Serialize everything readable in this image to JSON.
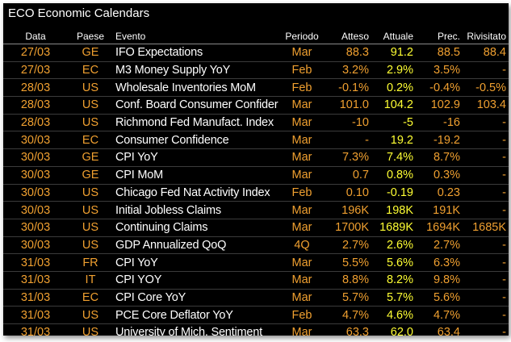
{
  "title": "ECO Economic Calendars",
  "colors": {
    "background": "#000000",
    "header_text": "#ffffff",
    "value_orange": "#f0a030",
    "actual_yellow": "#ffff33"
  },
  "headers": {
    "date": "Data",
    "country": "Paese",
    "event": "Evento",
    "period": "Periodo",
    "expected": "Atteso",
    "actual": "Attuale",
    "previous": "Prec.",
    "revised": "Rivisitato"
  },
  "rows": [
    {
      "date": "27/03",
      "country": "GE",
      "event": "IFO Expectations",
      "period": "Mar",
      "expected": "88.3",
      "actual": "91.2",
      "previous": "88.5",
      "revised": "88.4"
    },
    {
      "date": "27/03",
      "country": "EC",
      "event": "M3 Money Supply YoY",
      "period": "Feb",
      "expected": "3.2%",
      "actual": "2.9%",
      "previous": "3.5%",
      "revised": "-"
    },
    {
      "date": "28/03",
      "country": "US",
      "event": "Wholesale Inventories MoM",
      "period": "Feb",
      "expected": "-0.1%",
      "actual": "0.2%",
      "previous": "-0.4%",
      "revised": "-0.5%"
    },
    {
      "date": "28/03",
      "country": "US",
      "event": "Conf. Board Consumer Confider",
      "period": "Mar",
      "expected": "101.0",
      "actual": "104.2",
      "previous": "102.9",
      "revised": "103.4"
    },
    {
      "date": "28/03",
      "country": "US",
      "event": "Richmond Fed Manufact. Index",
      "period": "Mar",
      "expected": "-10",
      "actual": "-5",
      "previous": "-16",
      "revised": "-"
    },
    {
      "date": "30/03",
      "country": "EC",
      "event": "Consumer Confidence",
      "period": "Mar",
      "expected": "-",
      "actual": "19.2",
      "previous": "-19.2",
      "revised": "-"
    },
    {
      "date": "30/03",
      "country": "GE",
      "event": "CPI YoY",
      "period": "Mar",
      "expected": "7.3%",
      "actual": "7.4%",
      "previous": "8.7%",
      "revised": "-"
    },
    {
      "date": "30/03",
      "country": "GE",
      "event": "CPI MoM",
      "period": "Mar",
      "expected": "0.7",
      "actual": "0.8%",
      "previous": "0.3%",
      "revised": "-"
    },
    {
      "date": "30/03",
      "country": "US",
      "event": "Chicago Fed Nat Activity Index",
      "period": "Feb",
      "expected": "0.10",
      "actual": "-0.19",
      "previous": "0.23",
      "revised": "-"
    },
    {
      "date": "30/03",
      "country": "US",
      "event": "Initial Jobless Claims",
      "period": "Mar",
      "expected": "196K",
      "actual": "198K",
      "previous": "191K",
      "revised": "-"
    },
    {
      "date": "30/03",
      "country": "US",
      "event": "Continuing Claims",
      "period": "Mar",
      "expected": "1700K",
      "actual": "1689K",
      "previous": "1694K",
      "revised": "1685K"
    },
    {
      "date": "30/03",
      "country": "US",
      "event": "GDP Annualized QoQ",
      "period": "4Q",
      "expected": "2.7%",
      "actual": "2.6%",
      "previous": "2.7%",
      "revised": "-"
    },
    {
      "date": "31/03",
      "country": "FR",
      "event": "CPI YoY",
      "period": "Mar",
      "expected": "5.5%",
      "actual": "5.6%",
      "previous": "6.3%",
      "revised": "-"
    },
    {
      "date": "31/03",
      "country": "IT",
      "event": "CPI YOY",
      "period": "Mar",
      "expected": "8.8%",
      "actual": "8.2%",
      "previous": "9.8%",
      "revised": "-"
    },
    {
      "date": "31/03",
      "country": "EC",
      "event": "CPI Core YoY",
      "period": "Mar",
      "expected": "5.7%",
      "actual": "5.7%",
      "previous": "5.6%",
      "revised": "-"
    },
    {
      "date": "31/03",
      "country": "US",
      "event": "PCE Core Deflator YoY",
      "period": "Feb",
      "expected": "4.7%",
      "actual": "4.6%",
      "previous": "4.7%",
      "revised": "-"
    },
    {
      "date": "31/03",
      "country": "US",
      "event": "University of Mich. Sentiment",
      "period": "Mar",
      "expected": "63.3",
      "actual": "62.0",
      "previous": "63.4",
      "revised": "-"
    }
  ]
}
